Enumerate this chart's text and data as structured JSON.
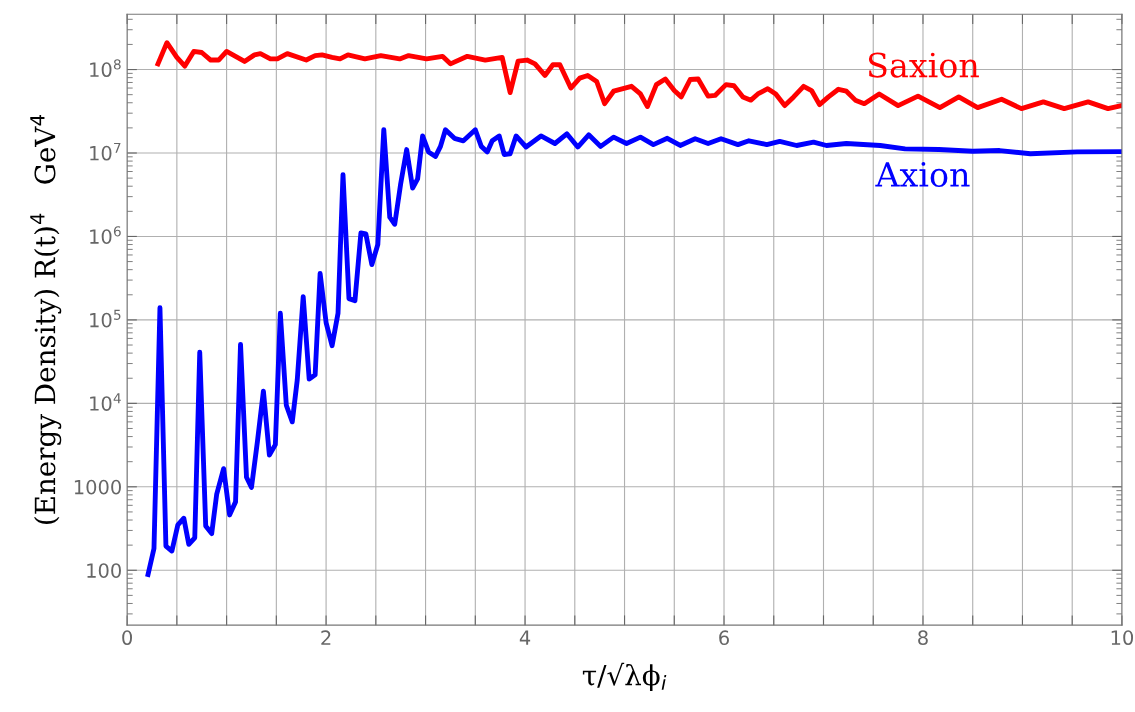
{
  "chart_data": {
    "type": "line",
    "xlabel": "τ/√λϕ$_{i}$",
    "ylabel": "(Energy Density) R(t)$^{4}$   GeV$^{4}$",
    "log": "y",
    "grid": true,
    "marker": "none",
    "line_style": "solid",
    "xlim": [
      0,
      10
    ],
    "xticks": [
      0,
      {
        "value": 0.5,
        "label": null
      },
      {
        "value": 1,
        "label": null
      },
      {
        "value": 1.5,
        "label": null
      },
      2,
      {
        "value": 2.5,
        "label": null
      },
      {
        "value": 3,
        "label": null
      },
      {
        "value": 3.5,
        "label": null
      },
      4,
      {
        "value": 4.5,
        "label": null
      },
      {
        "value": 5,
        "label": null
      },
      {
        "value": 5.5,
        "label": null
      },
      6,
      {
        "value": 6.5,
        "label": null
      },
      {
        "value": 7,
        "label": null
      },
      {
        "value": 7.5,
        "label": null
      },
      8,
      {
        "value": 8.5,
        "label": null
      },
      {
        "value": 9,
        "label": null
      },
      {
        "value": 9.5,
        "label": null
      },
      10
    ],
    "ylim": [
      22,
      460000000
    ],
    "yticks": [
      100,
      1000,
      {
        "value": 10000,
        "label": "10$^{4}$"
      },
      {
        "value": 100000,
        "label": "10$^{5}$"
      },
      {
        "value": 1000000,
        "label": "10$^{6}$"
      },
      {
        "value": 10000000,
        "label": "10$^{7}$"
      },
      {
        "value": 100000000,
        "label": "10$^{8}$"
      }
    ],
    "series": [
      {
        "name": "Saxion",
        "color": "#ff0000",
        "x": [
          0.31,
          0.4,
          0.5,
          0.58,
          0.67,
          0.75,
          0.84,
          0.92,
          1.0,
          1.18,
          1.28,
          1.34,
          1.44,
          1.51,
          1.61,
          1.8,
          1.89,
          1.96,
          2.06,
          2.14,
          2.22,
          2.39,
          2.55,
          2.74,
          2.83,
          3.01,
          3.17,
          3.25,
          3.42,
          3.6,
          3.77,
          3.85,
          3.93,
          4.02,
          4.1,
          4.2,
          4.28,
          4.35,
          4.46,
          4.55,
          4.63,
          4.72,
          4.8,
          4.89,
          5.07,
          5.16,
          5.23,
          5.32,
          5.41,
          5.5,
          5.57,
          5.66,
          5.74,
          5.84,
          5.91,
          6.02,
          6.1,
          6.19,
          6.27,
          6.34,
          6.44,
          6.52,
          6.61,
          6.7,
          6.8,
          6.88,
          6.96,
          7.05,
          7.15,
          7.23,
          7.32,
          7.41,
          7.56,
          7.75,
          7.95,
          8.17,
          8.36,
          8.55,
          8.79,
          8.99,
          9.21,
          9.42,
          9.66,
          9.86,
          10.0
        ],
        "values": [
          117000000.0,
          210000000.0,
          140000000.0,
          110000000.0,
          165000000.0,
          160000000.0,
          130000000.0,
          130000000.0,
          165000000.0,
          125000000.0,
          150000000.0,
          155000000.0,
          134000000.0,
          134000000.0,
          155000000.0,
          130000000.0,
          147000000.0,
          150000000.0,
          140000000.0,
          134000000.0,
          150000000.0,
          134000000.0,
          147000000.0,
          134000000.0,
          147000000.0,
          134000000.0,
          144000000.0,
          117000000.0,
          144000000.0,
          130000000.0,
          140000000.0,
          53000000.0,
          126000000.0,
          130000000.0,
          117000000.0,
          85000000.0,
          114000000.0,
          114000000.0,
          60000000.0,
          79000000.0,
          85000000.0,
          72000000.0,
          39000000.0,
          55000000.0,
          63000000.0,
          51000000.0,
          36000000.0,
          66000000.0,
          77000000.0,
          56000000.0,
          47000000.0,
          76000000.0,
          77000000.0,
          48000000.0,
          49000000.0,
          66000000.0,
          64000000.0,
          47000000.0,
          43000000.0,
          51000000.0,
          59000000.0,
          51000000.0,
          37000000.0,
          47000000.0,
          63000000.0,
          56000000.0,
          38000000.0,
          47000000.0,
          58000000.0,
          55000000.0,
          43000000.0,
          39000000.0,
          51000000.0,
          37000000.0,
          48000000.0,
          35000000.0,
          47000000.0,
          35000000.0,
          44000000.0,
          34000000.0,
          41000000.0,
          34000000.0,
          41000000.0,
          34000000.0,
          37000000.0
        ]
      },
      {
        "name": "Axion",
        "color": "#0000ff",
        "x": [
          0.21,
          0.27,
          0.33,
          0.39,
          0.45,
          0.51,
          0.57,
          0.62,
          0.68,
          0.73,
          0.79,
          0.85,
          0.9,
          0.97,
          1.03,
          1.09,
          1.14,
          1.2,
          1.25,
          1.31,
          1.37,
          1.43,
          1.49,
          1.54,
          1.6,
          1.66,
          1.71,
          1.77,
          1.83,
          1.89,
          1.94,
          2.0,
          2.06,
          2.12,
          2.17,
          2.23,
          2.29,
          2.35,
          2.4,
          2.46,
          2.52,
          2.58,
          2.64,
          2.69,
          2.75,
          2.81,
          2.87,
          2.92,
          2.97,
          3.03,
          3.1,
          3.15,
          3.2,
          3.29,
          3.38,
          3.5,
          3.56,
          3.62,
          3.67,
          3.74,
          3.79,
          3.85,
          3.91,
          4.01,
          4.16,
          4.3,
          4.42,
          4.53,
          4.64,
          4.76,
          4.89,
          5.02,
          5.16,
          5.29,
          5.43,
          5.56,
          5.71,
          5.84,
          5.97,
          6.14,
          6.25,
          6.43,
          6.56,
          6.73,
          6.9,
          7.03,
          7.23,
          7.57,
          7.82,
          8.16,
          8.5,
          8.77,
          9.08,
          9.55,
          10.0
        ],
        "values": [
          89,
          182,
          140000.0,
          195,
          170,
          350,
          420,
          205,
          245,
          41000.0,
          340,
          275,
          810,
          1650,
          460,
          660,
          51000.0,
          1300,
          980,
          3500,
          14000.0,
          2400,
          3200,
          120000.0,
          9500,
          6000,
          19000.0,
          190000.0,
          19500.0,
          22000.0,
          360000.0,
          93000.0,
          49000.0,
          120000.0,
          5500000.0,
          180000.0,
          170000.0,
          1100000.0,
          1070000.0,
          460000.0,
          800000.0,
          19000000.0,
          1700000.0,
          1400000.0,
          4300000.0,
          11000000.0,
          3800000.0,
          4900000.0,
          16000000.0,
          10300000.0,
          9100000.0,
          12000000.0,
          19000000.0,
          15000000.0,
          14000000.0,
          19000000.0,
          12000000.0,
          10300000.0,
          14000000.0,
          16000000.0,
          9600000.0,
          9800000.0,
          16000000.0,
          11800000.0,
          16000000.0,
          13000000.0,
          17000000.0,
          11800000.0,
          16500000.0,
          12000000.0,
          15500000.0,
          13000000.0,
          15500000.0,
          12600000.0,
          15000000.0,
          12300000.0,
          14800000.0,
          13000000.0,
          14800000.0,
          12600000.0,
          14000000.0,
          12600000.0,
          13800000.0,
          12300000.0,
          13500000.0,
          12300000.0,
          13000000.0,
          12300000.0,
          11200000.0,
          11000000.0,
          10500000.0,
          10700000.0,
          9800000.0,
          10300000.0,
          10400000.0
        ]
      }
    ]
  }
}
